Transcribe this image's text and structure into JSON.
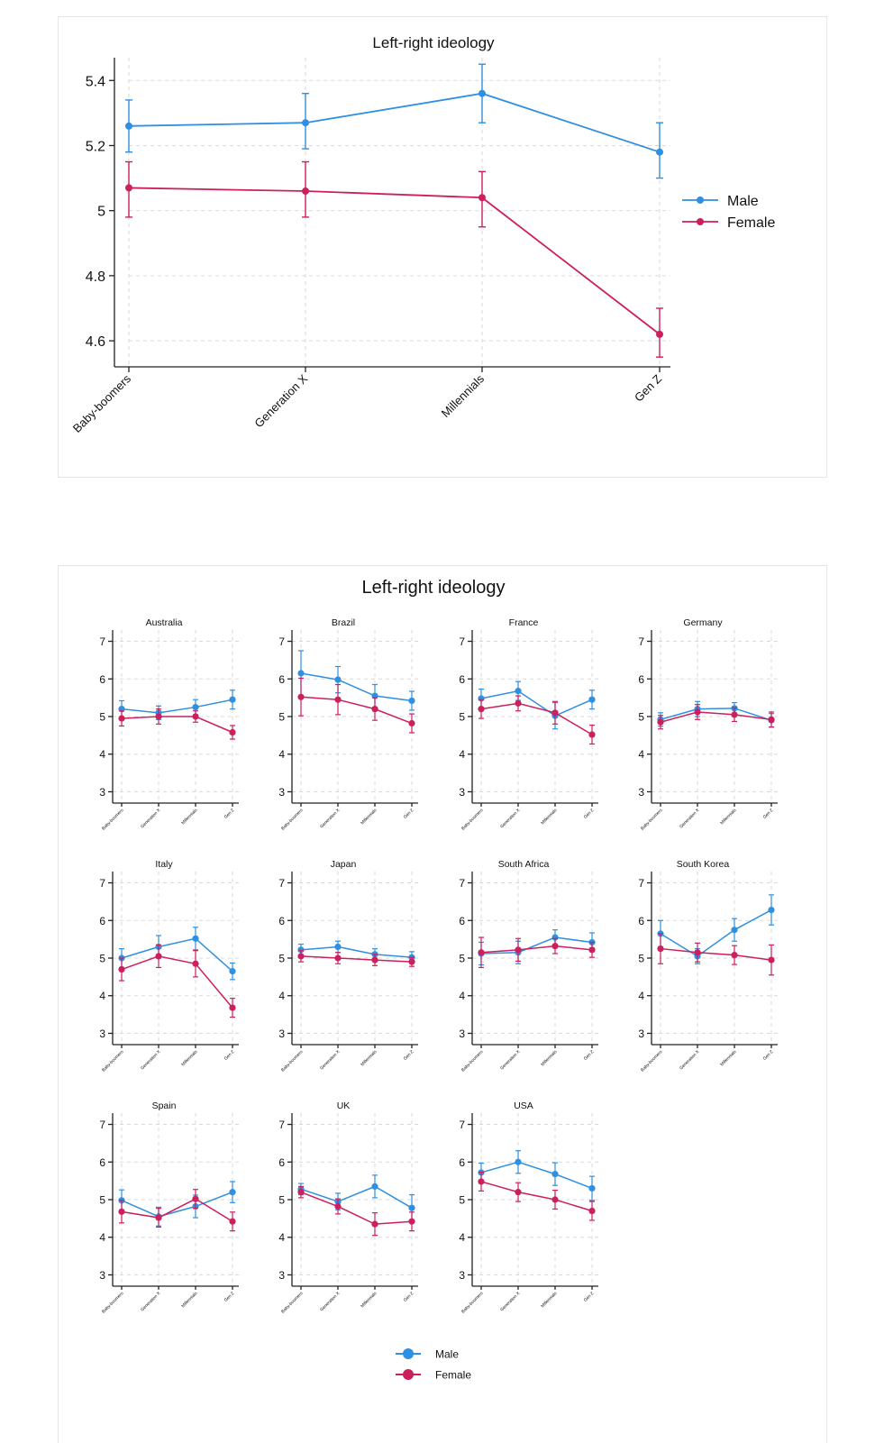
{
  "colors": {
    "male": "#2f8fe0",
    "female": "#cc1f5e"
  },
  "chart_data": [
    {
      "type": "line",
      "title": "Left-right ideology",
      "categories": [
        "Baby-boomers",
        "Generation X",
        "Millennials",
        "Gen Z"
      ],
      "ylim": [
        4.52,
        5.47
      ],
      "yticks": [
        "5.4",
        "5.2",
        "5",
        "4.8",
        "4.6"
      ],
      "ytick_values": [
        5.4,
        5.2,
        5.0,
        4.8,
        4.6
      ],
      "grid": true,
      "legend": "right",
      "error_bars": true,
      "series": [
        {
          "name": "Male",
          "values": [
            5.26,
            5.27,
            5.36,
            5.18
          ],
          "ci_low": [
            5.18,
            5.19,
            5.27,
            5.1
          ],
          "ci_high": [
            5.34,
            5.36,
            5.45,
            5.27
          ]
        },
        {
          "name": "Female",
          "values": [
            5.07,
            5.06,
            5.04,
            4.62
          ],
          "ci_low": [
            4.98,
            4.98,
            4.95,
            4.55
          ],
          "ci_high": [
            5.15,
            5.15,
            5.12,
            4.7
          ]
        }
      ]
    },
    {
      "type": "line",
      "title": "Left-right ideology",
      "categories": [
        "Baby-boomers",
        "Generation X",
        "Millennials",
        "Gen Z"
      ],
      "ylim": [
        2.7,
        7.3
      ],
      "yticks": [
        "7",
        "6",
        "5",
        "4",
        "3"
      ],
      "ytick_values": [
        7,
        6,
        5,
        4,
        3
      ],
      "grid": true,
      "legend": "bottom",
      "error_bars": true,
      "series_names": [
        "Male",
        "Female"
      ],
      "panels": [
        {
          "title": "Australia",
          "male": [
            5.2,
            5.1,
            5.25,
            5.45
          ],
          "male_err": [
            0.22,
            0.18,
            0.2,
            0.25
          ],
          "female": [
            4.95,
            5.0,
            5.0,
            4.58
          ],
          "female_err": [
            0.2,
            0.2,
            0.15,
            0.18
          ]
        },
        {
          "title": "Brazil",
          "male": [
            6.15,
            5.98,
            5.55,
            5.42
          ],
          "male_err": [
            0.6,
            0.35,
            0.3,
            0.25
          ],
          "female": [
            5.52,
            5.45,
            5.2,
            4.82
          ],
          "female_err": [
            0.5,
            0.4,
            0.3,
            0.25
          ]
        },
        {
          "title": "France",
          "male": [
            5.48,
            5.68,
            5.02,
            5.45
          ],
          "male_err": [
            0.25,
            0.25,
            0.35,
            0.25
          ],
          "female": [
            5.2,
            5.35,
            5.1,
            4.52
          ],
          "female_err": [
            0.25,
            0.2,
            0.3,
            0.25
          ]
        },
        {
          "title": "Germany",
          "male": [
            4.92,
            5.2,
            5.22,
            4.9
          ],
          "male_err": [
            0.18,
            0.2,
            0.15,
            0.18
          ],
          "female": [
            4.85,
            5.12,
            5.05,
            4.92
          ],
          "female_err": [
            0.18,
            0.2,
            0.18,
            0.2
          ]
        },
        {
          "title": "Italy",
          "male": [
            5.0,
            5.3,
            5.52,
            4.65
          ],
          "male_err": [
            0.25,
            0.3,
            0.3,
            0.22
          ],
          "female": [
            4.7,
            5.05,
            4.85,
            3.68
          ],
          "female_err": [
            0.3,
            0.3,
            0.35,
            0.25
          ]
        },
        {
          "title": "Japan",
          "male": [
            5.22,
            5.3,
            5.1,
            5.02
          ],
          "male_err": [
            0.15,
            0.15,
            0.15,
            0.15
          ],
          "female": [
            5.05,
            5.0,
            4.95,
            4.9
          ],
          "female_err": [
            0.15,
            0.15,
            0.15,
            0.12
          ]
        },
        {
          "title": "South Africa",
          "male": [
            5.12,
            5.15,
            5.55,
            5.42
          ],
          "male_err": [
            0.3,
            0.3,
            0.2,
            0.25
          ],
          "female": [
            5.15,
            5.22,
            5.32,
            5.22
          ],
          "female_err": [
            0.4,
            0.3,
            0.2,
            0.2
          ]
        },
        {
          "title": "South Korea",
          "male": [
            5.65,
            5.05,
            5.75,
            6.28
          ],
          "male_err": [
            0.35,
            0.2,
            0.3,
            0.4
          ],
          "female": [
            5.25,
            5.15,
            5.08,
            4.95
          ],
          "female_err": [
            0.4,
            0.25,
            0.25,
            0.4
          ]
        },
        {
          "title": "Spain",
          "male": [
            4.98,
            4.55,
            4.82,
            5.2
          ],
          "male_err": [
            0.28,
            0.25,
            0.3,
            0.28
          ],
          "female": [
            4.68,
            4.52,
            5.02,
            4.42
          ],
          "female_err": [
            0.3,
            0.25,
            0.25,
            0.25
          ]
        },
        {
          "title": "UK",
          "male": [
            5.28,
            4.95,
            5.35,
            4.78
          ],
          "male_err": [
            0.15,
            0.22,
            0.3,
            0.35
          ],
          "female": [
            5.2,
            4.82,
            4.35,
            4.42
          ],
          "female_err": [
            0.15,
            0.2,
            0.3,
            0.25
          ]
        },
        {
          "title": "USA",
          "male": [
            5.72,
            6.0,
            5.68,
            5.3
          ],
          "male_err": [
            0.25,
            0.3,
            0.3,
            0.32
          ],
          "female": [
            5.48,
            5.2,
            5.0,
            4.7
          ],
          "female_err": [
            0.25,
            0.25,
            0.25,
            0.25
          ]
        }
      ]
    }
  ]
}
